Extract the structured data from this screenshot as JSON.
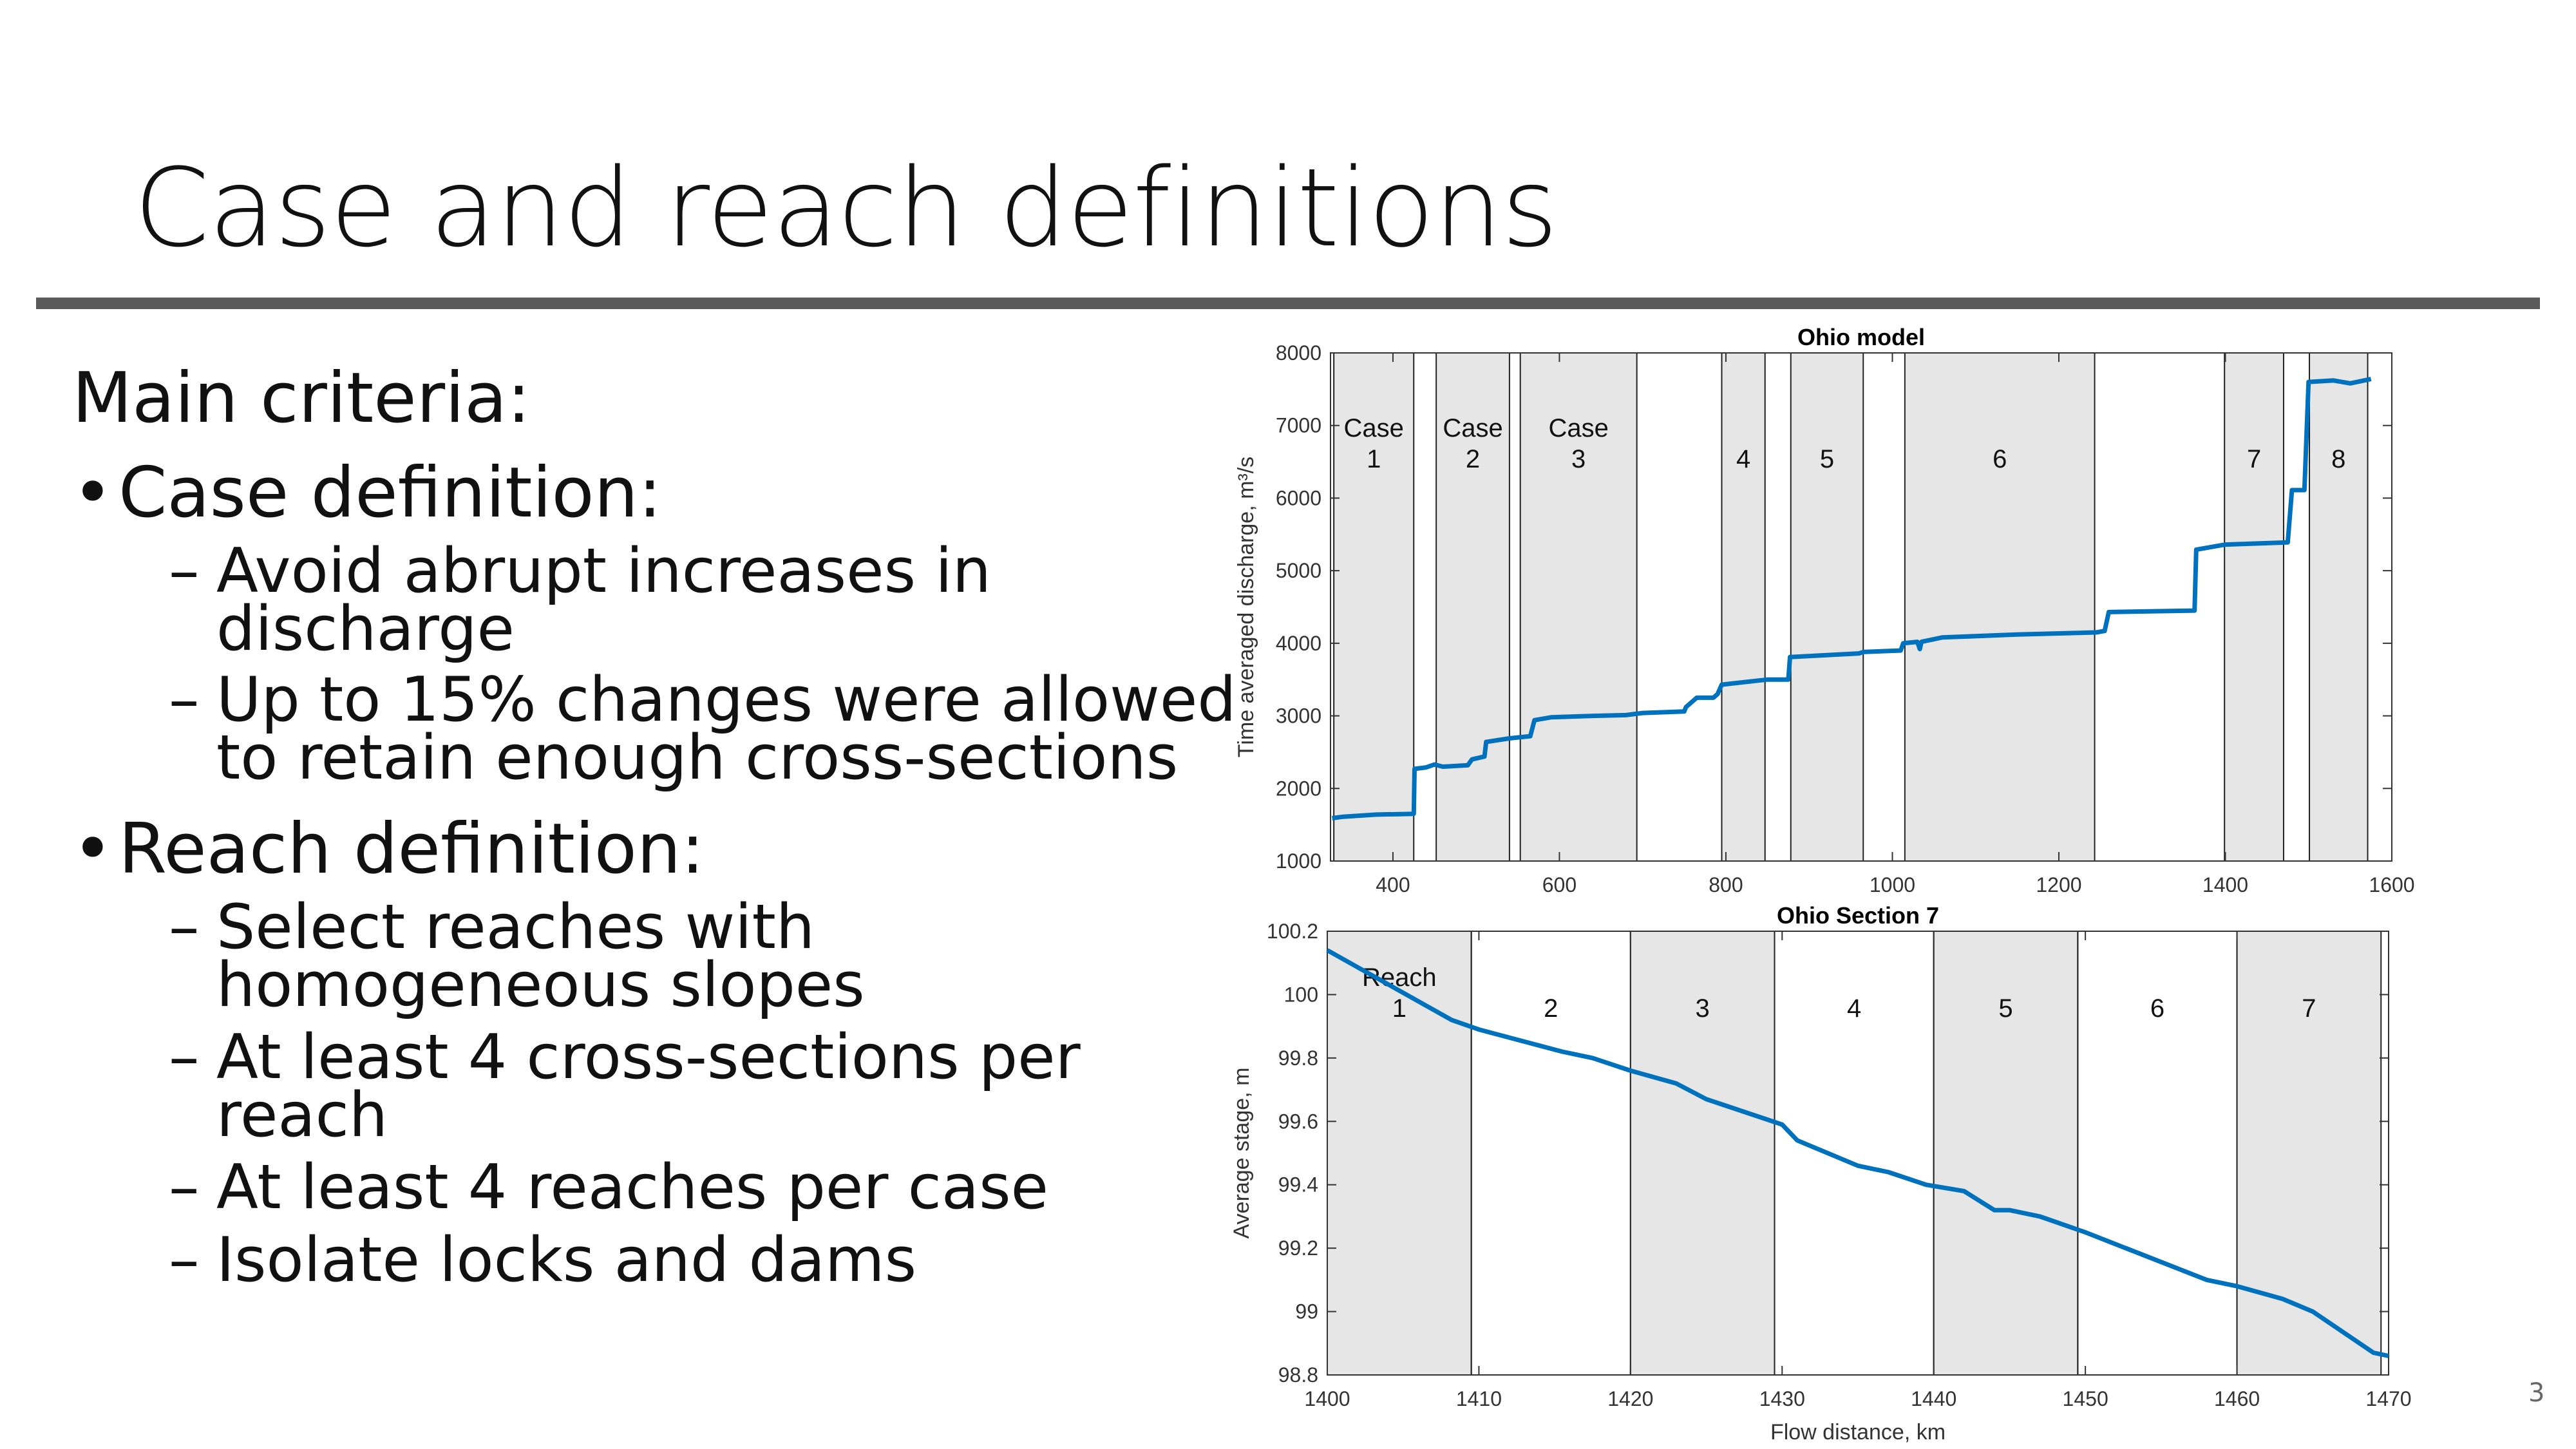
{
  "slide": {
    "title": "Case and reach definitions",
    "page_number": "3",
    "bullets": {
      "heading": "Main criteria:",
      "case_definition": {
        "label": "Case definition:",
        "items": [
          [
            "Avoid abrupt increases in",
            "discharge"
          ],
          [
            "Up to 15% changes were allowed",
            "to retain enough cross-sections"
          ]
        ]
      },
      "reach_definition": {
        "label": "Reach definition:",
        "items": [
          [
            "Select reaches with",
            "homogeneous slopes"
          ],
          [
            "At least 4 cross-sections per",
            "reach"
          ],
          [
            "At least 4 reaches per case"
          ],
          [
            "Isolate locks and dams"
          ]
        ]
      }
    }
  },
  "colors": {
    "line": "#0072BD",
    "band": "#E6E6E6",
    "rule": "#595959"
  },
  "chart_data": [
    {
      "type": "line",
      "title": "Ohio model",
      "xlabel": "",
      "ylabel": "Time averaged discharge, m³/s",
      "xlim": [
        325,
        1600
      ],
      "ylim": [
        1000,
        8000
      ],
      "xticks": [
        400,
        600,
        800,
        1000,
        1200,
        1400,
        1600
      ],
      "yticks": [
        1000,
        2000,
        3000,
        4000,
        5000,
        6000,
        7000,
        8000
      ],
      "bands": [
        {
          "range": [
            329,
            425
          ],
          "label": [
            "Case",
            "1"
          ]
        },
        {
          "range": [
            452,
            540
          ],
          "label": [
            "Case",
            "2"
          ]
        },
        {
          "range": [
            553,
            693
          ],
          "label": [
            "Case",
            "3"
          ]
        },
        {
          "range": [
            795,
            847
          ],
          "label": [
            "4"
          ]
        },
        {
          "range": [
            878,
            965
          ],
          "label": [
            "5"
          ]
        },
        {
          "range": [
            1015,
            1243
          ],
          "label": [
            "6"
          ]
        },
        {
          "range": [
            1399,
            1470
          ],
          "label": [
            "7"
          ]
        },
        {
          "range": [
            1501,
            1571
          ],
          "label": [
            "8"
          ]
        }
      ],
      "series": [
        {
          "name": "discharge",
          "points": [
            [
              327,
              1590
            ],
            [
              340,
              1610
            ],
            [
              380,
              1640
            ],
            [
              425,
              1650
            ],
            [
              426,
              2270
            ],
            [
              440,
              2290
            ],
            [
              450,
              2330
            ],
            [
              460,
              2300
            ],
            [
              490,
              2320
            ],
            [
              495,
              2400
            ],
            [
              510,
              2440
            ],
            [
              512,
              2640
            ],
            [
              540,
              2690
            ],
            [
              565,
              2720
            ],
            [
              570,
              2940
            ],
            [
              590,
              2980
            ],
            [
              640,
              3000
            ],
            [
              680,
              3010
            ],
            [
              700,
              3040
            ],
            [
              750,
              3060
            ],
            [
              752,
              3120
            ],
            [
              765,
              3250
            ],
            [
              785,
              3250
            ],
            [
              790,
              3300
            ],
            [
              795,
              3430
            ],
            [
              850,
              3500
            ],
            [
              875,
              3500
            ],
            [
              877,
              3810
            ],
            [
              960,
              3860
            ],
            [
              965,
              3880
            ],
            [
              1010,
              3900
            ],
            [
              1013,
              4000
            ],
            [
              1030,
              4020
            ],
            [
              1033,
              3920
            ],
            [
              1035,
              4020
            ],
            [
              1060,
              4080
            ],
            [
              1150,
              4120
            ],
            [
              1245,
              4150
            ],
            [
              1255,
              4170
            ],
            [
              1260,
              4430
            ],
            [
              1363,
              4450
            ],
            [
              1365,
              5290
            ],
            [
              1400,
              5360
            ],
            [
              1475,
              5390
            ],
            [
              1480,
              6110
            ],
            [
              1495,
              6110
            ],
            [
              1500,
              7600
            ],
            [
              1530,
              7620
            ],
            [
              1550,
              7580
            ],
            [
              1575,
              7640
            ]
          ]
        }
      ]
    },
    {
      "type": "line",
      "title": "Ohio Section 7",
      "xlabel": "Flow distance, km",
      "ylabel": "Average stage, m",
      "xlim": [
        1400,
        1470
      ],
      "ylim": [
        98.8,
        100.2
      ],
      "xticks": [
        1400,
        1410,
        1420,
        1430,
        1440,
        1450,
        1460,
        1470
      ],
      "yticks": [
        98.8,
        99,
        99.2,
        99.4,
        99.6,
        99.8,
        100,
        100.2
      ],
      "bands": [
        {
          "range": [
            1400,
            1409.5
          ],
          "label": [
            "Reach",
            "1"
          ],
          "shaded": true
        },
        {
          "range": [
            1409.5,
            1420
          ],
          "label": [
            "2"
          ],
          "shaded": false
        },
        {
          "range": [
            1420,
            1429.5
          ],
          "label": [
            "3"
          ],
          "shaded": true
        },
        {
          "range": [
            1429.5,
            1440
          ],
          "label": [
            "4"
          ],
          "shaded": false
        },
        {
          "range": [
            1440,
            1449.5
          ],
          "label": [
            "5"
          ],
          "shaded": true
        },
        {
          "range": [
            1449.5,
            1460
          ],
          "label": [
            "6"
          ],
          "shaded": false
        },
        {
          "range": [
            1460,
            1469.5
          ],
          "label": [
            "7"
          ],
          "shaded": true
        }
      ],
      "series": [
        {
          "name": "stage",
          "points": [
            [
              1400,
              100.14
            ],
            [
              1408.2,
              99.92
            ],
            [
              1410,
              99.89
            ],
            [
              1415.5,
              99.82
            ],
            [
              1417.5,
              99.8
            ],
            [
              1420,
              99.76
            ],
            [
              1423,
              99.72
            ],
            [
              1425,
              99.67
            ],
            [
              1430,
              99.59
            ],
            [
              1431,
              99.54
            ],
            [
              1435,
              99.46
            ],
            [
              1437,
              99.44
            ],
            [
              1439.5,
              99.4
            ],
            [
              1442,
              99.38
            ],
            [
              1444,
              99.32
            ],
            [
              1445,
              99.32
            ],
            [
              1447,
              99.3
            ],
            [
              1450,
              99.25
            ],
            [
              1458,
              99.1
            ],
            [
              1460,
              99.08
            ],
            [
              1463,
              99.04
            ],
            [
              1465,
              99.0
            ],
            [
              1469,
              98.87
            ],
            [
              1470,
              98.86
            ]
          ]
        }
      ]
    }
  ]
}
